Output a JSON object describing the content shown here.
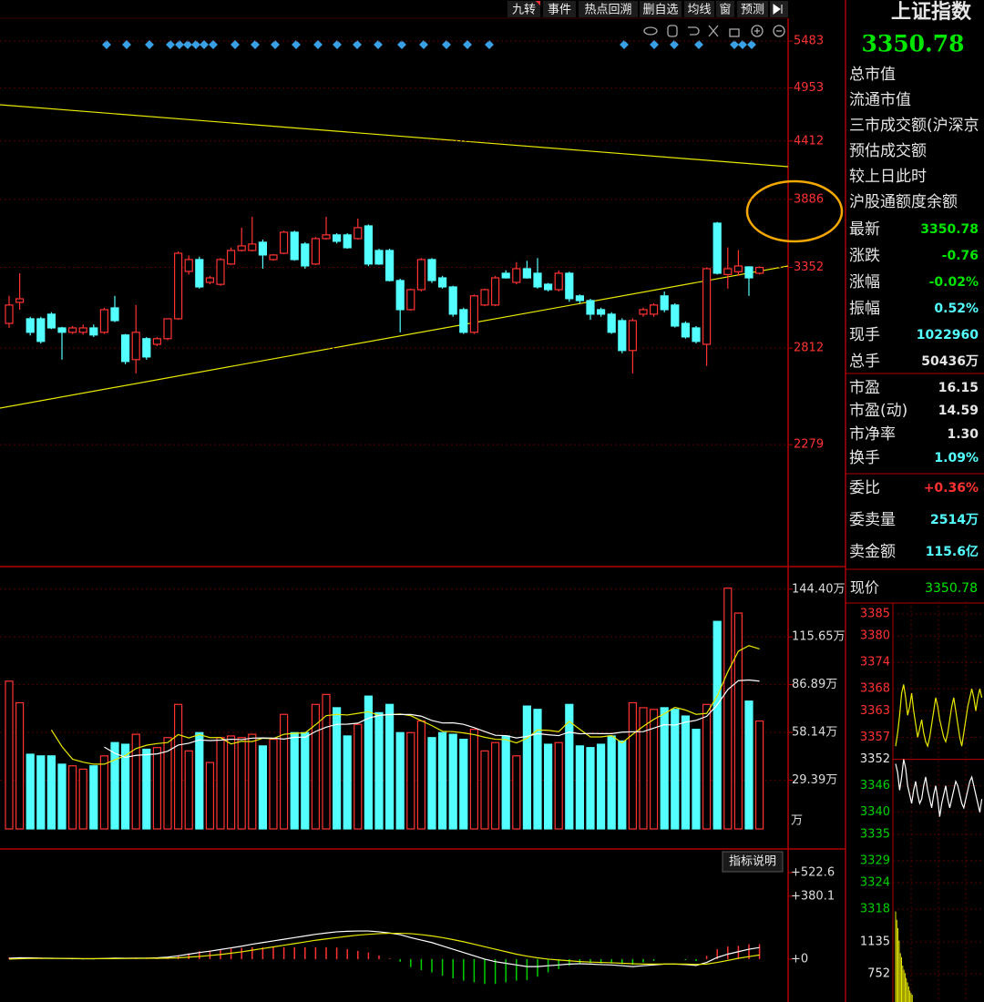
{
  "toolbar": {
    "buttons": [
      "九转",
      "事件",
      "热点回溯",
      "删自选",
      "均线",
      "窗",
      "预测"
    ]
  },
  "main_chart": {
    "type": "candlestick",
    "log_scale": true,
    "grid": true,
    "ylim": [
      1755,
      5740
    ],
    "yticks": [
      5483,
      4953,
      4412,
      3886,
      3352,
      2812,
      2279
    ],
    "up_color": "#ff3232",
    "down_color": "#54ffff",
    "tick_color": "#ff3232",
    "candles": [
      {
        "open": 2967,
        "high": 3150,
        "low": 2938,
        "close": 3088
      },
      {
        "open": 3106,
        "high": 3309,
        "low": 3057,
        "close": 3130
      },
      {
        "open": 2997,
        "high": 3010,
        "low": 2890,
        "close": 2910
      },
      {
        "open": 2997,
        "high": 3010,
        "low": 2840,
        "close": 2853
      },
      {
        "open": 3027,
        "high": 3040,
        "low": 2930,
        "close": 2938
      },
      {
        "open": 2938,
        "high": 2945,
        "low": 2742,
        "close": 2910
      },
      {
        "open": 2910,
        "high": 2950,
        "low": 2900,
        "close": 2938
      },
      {
        "open": 2910,
        "high": 2960,
        "low": 2895,
        "close": 2938
      },
      {
        "open": 2938,
        "high": 2960,
        "low": 2880,
        "close": 2893
      },
      {
        "open": 2910,
        "high": 3070,
        "low": 2900,
        "close": 3057
      },
      {
        "open": 3069,
        "high": 3150,
        "low": 2975,
        "close": 2985
      },
      {
        "open": 2893,
        "high": 2900,
        "low": 2715,
        "close": 2731
      },
      {
        "open": 2742,
        "high": 3088,
        "low": 2661,
        "close": 2910
      },
      {
        "open": 2870,
        "high": 2880,
        "low": 2742,
        "close": 2758
      },
      {
        "open": 2835,
        "high": 2880,
        "low": 2824,
        "close": 2870
      },
      {
        "open": 2870,
        "high": 3000,
        "low": 2860,
        "close": 2997
      },
      {
        "open": 2997,
        "high": 3470,
        "low": 2990,
        "close": 3456
      },
      {
        "open": 3322,
        "high": 3440,
        "low": 3300,
        "close": 3409
      },
      {
        "open": 3409,
        "high": 3430,
        "low": 3200,
        "close": 3212
      },
      {
        "open": 3244,
        "high": 3290,
        "low": 3230,
        "close": 3276
      },
      {
        "open": 3230,
        "high": 3420,
        "low": 3220,
        "close": 3409
      },
      {
        "open": 3376,
        "high": 3500,
        "low": 3370,
        "close": 3477
      },
      {
        "open": 3477,
        "high": 3654,
        "low": 3470,
        "close": 3512
      },
      {
        "open": 3477,
        "high": 3742,
        "low": 3470,
        "close": 3526
      },
      {
        "open": 3540,
        "high": 3560,
        "low": 3342,
        "close": 3443
      },
      {
        "open": 3409,
        "high": 3450,
        "low": 3400,
        "close": 3443
      },
      {
        "open": 3456,
        "high": 3630,
        "low": 3450,
        "close": 3618
      },
      {
        "open": 3618,
        "high": 3630,
        "low": 3400,
        "close": 3409
      },
      {
        "open": 3526,
        "high": 3540,
        "low": 3342,
        "close": 3362
      },
      {
        "open": 3376,
        "high": 3580,
        "low": 3370,
        "close": 3568
      },
      {
        "open": 3568,
        "high": 3742,
        "low": 3560,
        "close": 3597
      },
      {
        "open": 3597,
        "high": 3610,
        "low": 3530,
        "close": 3547
      },
      {
        "open": 3597,
        "high": 3610,
        "low": 3490,
        "close": 3498
      },
      {
        "open": 3568,
        "high": 3727,
        "low": 3560,
        "close": 3654
      },
      {
        "open": 3668,
        "high": 3680,
        "low": 3360,
        "close": 3376
      },
      {
        "open": 3477,
        "high": 3490,
        "low": 3370,
        "close": 3376
      },
      {
        "open": 3477,
        "high": 3490,
        "low": 3250,
        "close": 3257
      },
      {
        "open": 3257,
        "high": 3270,
        "low": 2910,
        "close": 3057
      },
      {
        "open": 3057,
        "high": 3200,
        "low": 3050,
        "close": 3193
      },
      {
        "open": 3193,
        "high": 3420,
        "low": 3180,
        "close": 3409
      },
      {
        "open": 3409,
        "high": 3420,
        "low": 3240,
        "close": 3257
      },
      {
        "open": 3276,
        "high": 3290,
        "low": 3200,
        "close": 3212
      },
      {
        "open": 3212,
        "high": 3220,
        "low": 3010,
        "close": 3027
      },
      {
        "open": 3057,
        "high": 3070,
        "low": 2900,
        "close": 2910
      },
      {
        "open": 2910,
        "high": 3160,
        "low": 2900,
        "close": 3150
      },
      {
        "open": 3088,
        "high": 3200,
        "low": 3080,
        "close": 3193
      },
      {
        "open": 3088,
        "high": 3290,
        "low": 3080,
        "close": 3276
      },
      {
        "open": 3309,
        "high": 3330,
        "low": 3270,
        "close": 3276
      },
      {
        "open": 3244,
        "high": 3390,
        "low": 3230,
        "close": 3342
      },
      {
        "open": 3342,
        "high": 3400,
        "low": 3270,
        "close": 3276
      },
      {
        "open": 3309,
        "high": 3420,
        "low": 3200,
        "close": 3212
      },
      {
        "open": 3231,
        "high": 3240,
        "low": 3180,
        "close": 3193
      },
      {
        "open": 3193,
        "high": 3330,
        "low": 3180,
        "close": 3309
      },
      {
        "open": 3309,
        "high": 3320,
        "low": 3110,
        "close": 3131
      },
      {
        "open": 3150,
        "high": 3160,
        "low": 3100,
        "close": 3118
      },
      {
        "open": 3118,
        "high": 3130,
        "low": 2990,
        "close": 3027
      },
      {
        "open": 3057,
        "high": 3070,
        "low": 3010,
        "close": 3027
      },
      {
        "open": 3027,
        "high": 3040,
        "low": 2900,
        "close": 2910
      },
      {
        "open": 2985,
        "high": 3000,
        "low": 2780,
        "close": 2797
      },
      {
        "open": 2797,
        "high": 3000,
        "low": 2661,
        "close": 2985
      },
      {
        "open": 3027,
        "high": 3070,
        "low": 3010,
        "close": 3057
      },
      {
        "open": 3027,
        "high": 3100,
        "low": 3010,
        "close": 3088
      },
      {
        "open": 3150,
        "high": 3180,
        "low": 3040,
        "close": 3057
      },
      {
        "open": 3088,
        "high": 3100,
        "low": 2940,
        "close": 2950
      },
      {
        "open": 2967,
        "high": 2980,
        "low": 2870,
        "close": 2881
      },
      {
        "open": 2938,
        "high": 2950,
        "low": 2840,
        "close": 2853
      },
      {
        "open": 2835,
        "high": 3350,
        "low": 2705,
        "close": 3342
      },
      {
        "open": 3690,
        "high": 3700,
        "low": 3300,
        "close": 3309
      },
      {
        "open": 3300,
        "high": 3500,
        "low": 3200,
        "close": 3342
      },
      {
        "open": 3320,
        "high": 3480,
        "low": 3290,
        "close": 3362
      },
      {
        "open": 3355,
        "high": 3360,
        "low": 3150,
        "close": 3276
      },
      {
        "open": 3309,
        "high": 3360,
        "low": 3300,
        "close": 3351
      }
    ]
  },
  "volume_chart": {
    "type": "bar",
    "grid": true,
    "ylim": [
      0,
      158
    ],
    "unit": "万",
    "yticks": [
      {
        "value": 144.4,
        "label": "144.40万"
      },
      {
        "value": 115.65,
        "label": "115.65万"
      },
      {
        "value": 86.89,
        "label": "86.89万"
      },
      {
        "value": 58.14,
        "label": "58.14万"
      },
      {
        "value": 29.39,
        "label": "29.39万"
      }
    ],
    "ma_lines": [
      {
        "period": 5,
        "color": "#e8e800"
      },
      {
        "period": 10,
        "color": "#ffffff"
      }
    ],
    "values": [
      89,
      76,
      45,
      44,
      44,
      39,
      38,
      36,
      38,
      44,
      52,
      51,
      57,
      48,
      49,
      55,
      75,
      47,
      58,
      40,
      55,
      56,
      55,
      57,
      50,
      54,
      69,
      58,
      58,
      75,
      81,
      73,
      56,
      63,
      80,
      70,
      75,
      58,
      58,
      65,
      55,
      58,
      57,
      54,
      60,
      47,
      52,
      56,
      44,
      74,
      72,
      51,
      52,
      75,
      50,
      49,
      51,
      56,
      53,
      76,
      73,
      72,
      73,
      72,
      68,
      60,
      75,
      125,
      145,
      130,
      77,
      65
    ]
  },
  "macd_chart": {
    "type": "macd",
    "button": "指标说明",
    "ylim": [
      -259,
      649
    ],
    "yticks": [
      {
        "value": 522.6,
        "label": "+522.6"
      },
      {
        "value": 380.1,
        "label": "+380.1"
      },
      {
        "value": 0,
        "label": "+0"
      }
    ],
    "up_color": "#ff3232",
    "down_color": "#00d000",
    "hist": [
      10,
      12,
      8,
      4,
      2,
      0,
      -2,
      -2,
      -2,
      2,
      6,
      2,
      4,
      2,
      6,
      12,
      24,
      36,
      48,
      52,
      60,
      64,
      68,
      72,
      72,
      72,
      72,
      72,
      72,
      72,
      72,
      70,
      60,
      50,
      40,
      22,
      4,
      -16,
      -48,
      -66,
      -80,
      -100,
      -116,
      -130,
      -140,
      -150,
      -150,
      -140,
      -130,
      -126,
      -106,
      -80,
      -60,
      -40,
      -26,
      -24,
      -26,
      -26,
      -30,
      -34,
      -20,
      -10,
      0,
      0,
      -6,
      -12,
      20,
      60,
      76,
      80,
      90,
      90
    ],
    "series": [
      {
        "color": "#ffffff",
        "values": [
          5,
          8,
          8,
          6,
          5,
          4,
          3,
          2,
          2,
          4,
          6,
          5,
          6,
          6,
          8,
          12,
          20,
          30,
          40,
          48,
          58,
          68,
          78,
          90,
          100,
          110,
          120,
          130,
          140,
          150,
          158,
          165,
          168,
          170,
          170,
          165,
          158,
          148,
          130,
          115,
          100,
          80,
          60,
          40,
          20,
          0,
          -15,
          -25,
          -35,
          -45,
          -45,
          -40,
          -35,
          -30,
          -28,
          -30,
          -33,
          -35,
          -40,
          -45,
          -40,
          -35,
          -30,
          -30,
          -33,
          -38,
          -20,
          10,
          30,
          45,
          60,
          70
        ]
      },
      {
        "color": "#e8e800",
        "values": [
          0,
          2,
          4,
          4,
          4,
          4,
          4,
          3,
          3,
          3,
          3,
          4,
          4,
          5,
          5,
          6,
          8,
          12,
          16,
          22,
          28,
          36,
          44,
          54,
          64,
          74,
          84,
          94,
          104,
          114,
          122,
          130,
          138,
          145,
          150,
          154,
          156,
          156,
          154,
          148,
          140,
          130,
          118,
          105,
          90,
          75,
          60,
          45,
          30,
          18,
          8,
          0,
          -5,
          -10,
          -15,
          -18,
          -20,
          -22,
          -25,
          -28,
          -30,
          -30,
          -30,
          -30,
          -30,
          -32,
          -30,
          -20,
          -8,
          5,
          15,
          25
        ]
      }
    ]
  },
  "quote_panel": {
    "title": "上证指数",
    "price": "3350.78",
    "price_color": "#00e600",
    "labels": [
      "总市值",
      "流通市值",
      "三市成交额(沪深京",
      "预估成交额",
      "较上日此时",
      "沪股通额度余额"
    ],
    "rows": [
      {
        "label": "最新",
        "value": "3350.78",
        "color": "#00e600"
      },
      {
        "label": "涨跌",
        "value": "-0.76",
        "color": "#00e600"
      },
      {
        "label": "涨幅",
        "value": "-0.02%",
        "color": "#00e600"
      },
      {
        "label": "振幅",
        "value": "0.52%",
        "color": "#54ffff"
      },
      {
        "label": "现手",
        "value": "1022960",
        "color": "#54ffff"
      },
      {
        "label": "总手",
        "value": "50436万",
        "color": "#e6e6e6"
      },
      {
        "label": "市盈",
        "value": "16.15",
        "color": "#e6e6e6"
      },
      {
        "label": "市盈(动)",
        "value": "14.59",
        "color": "#e6e6e6"
      },
      {
        "label": "市净率",
        "value": "1.30",
        "color": "#e6e6e6"
      },
      {
        "label": "换手",
        "value": "1.09%",
        "color": "#54ffff"
      },
      {
        "label": "委比",
        "value": "+0.36%",
        "color": "#ff3232"
      },
      {
        "label": "委卖量",
        "value": "2514万",
        "color": "#54ffff"
      },
      {
        "label": "卖金额",
        "value": "115.6亿",
        "color": "#54ffff"
      }
    ]
  },
  "intraday_chart": {
    "type": "line",
    "header_label": "现价",
    "header_value": "3350.78",
    "header_color": "#00e600",
    "ylim": [
      3317.6,
      3387.9
    ],
    "yticks": [
      3385,
      3380,
      3374,
      3368,
      3363,
      3357,
      3352,
      3346,
      3340,
      3335,
      3329,
      3324,
      3318
    ],
    "ytick_colors": [
      "#ff3232",
      "#ff3232",
      "#ff3232",
      "#ff3232",
      "#ff3232",
      "#ff3232",
      "#e6e6e6",
      "#00d000",
      "#00d000",
      "#00d000",
      "#00d000",
      "#00d000",
      "#00d000"
    ],
    "series": [
      {
        "color": "#ffffff",
        "values": [
          3351,
          3349,
          3345,
          3348,
          3352,
          3350,
          3346,
          3344,
          3342,
          3345,
          3347,
          3344,
          3342,
          3343,
          3346,
          3348,
          3345,
          3343,
          3341,
          3344,
          3346,
          3343,
          3339,
          3342,
          3344,
          3346,
          3343,
          3341,
          3343,
          3345,
          3347,
          3346,
          3344,
          3342,
          3341,
          3343,
          3345,
          3347,
          3348,
          3346,
          3344,
          3342,
          3340,
          3343
        ]
      },
      {
        "color": "#e8e800",
        "values": [
          3355,
          3358,
          3362,
          3367,
          3369,
          3366,
          3362,
          3364,
          3367,
          3363,
          3360,
          3357,
          3359,
          3361,
          3358,
          3356,
          3355,
          3357,
          3360,
          3363,
          3366,
          3364,
          3361,
          3359,
          3357,
          3356,
          3358,
          3361,
          3364,
          3366,
          3363,
          3360,
          3357,
          3355,
          3358,
          3361,
          3364,
          3366,
          3368,
          3366,
          3363,
          3366,
          3368,
          3366
        ]
      }
    ],
    "volume": {
      "ylim": [
        413,
        1507
      ],
      "yticks": [
        1135,
        752
      ],
      "color": "#e8e800",
      "values": [
        1500,
        1400,
        1300,
        1150,
        1000,
        950,
        850,
        800,
        760,
        700,
        650,
        600,
        550,
        520,
        500
      ]
    }
  }
}
